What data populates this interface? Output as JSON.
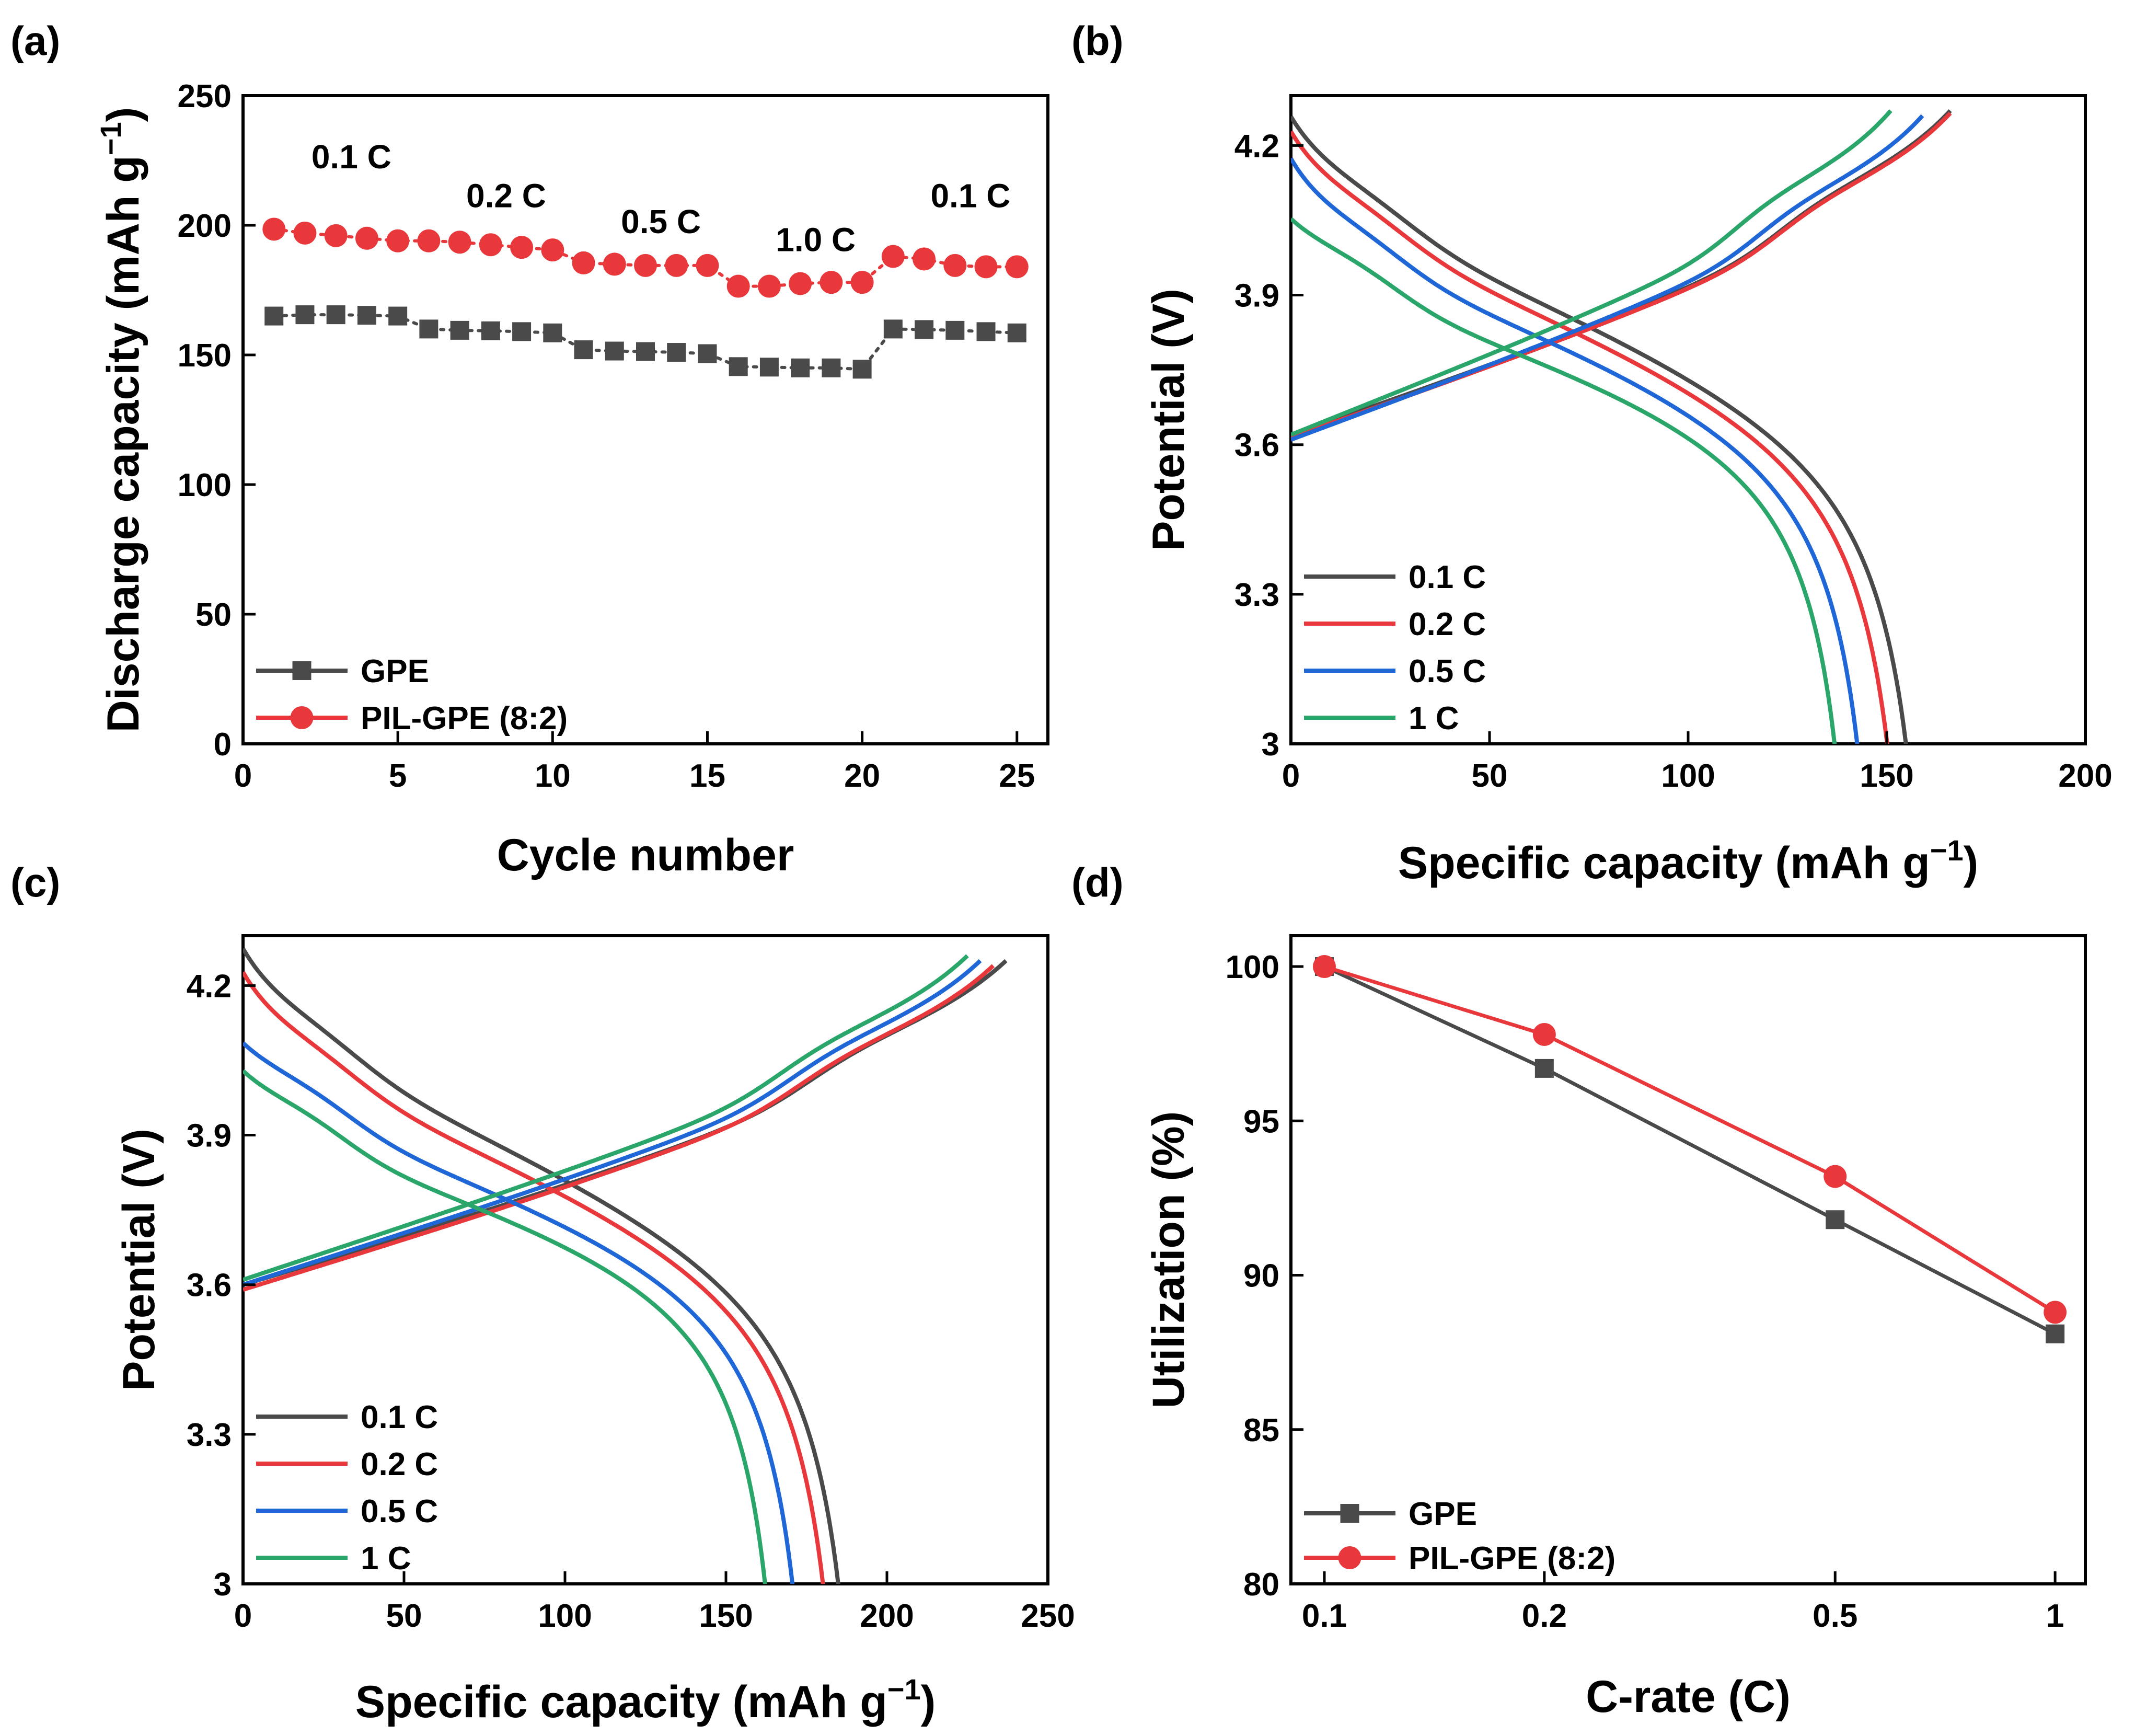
{
  "figure": {
    "background": "#ffffff",
    "panel_labels": [
      "(a)",
      "(b)",
      "(c)",
      "(d)"
    ]
  },
  "chart_data": [
    {
      "panel": "(a)",
      "type": "scatter",
      "xlabel": "Cycle number",
      "ylabel": "Discharge capacity (mAh g",
      "ylabel_sup": "−1",
      "ylabel_tail": ")",
      "xlim": [
        0,
        26
      ],
      "ylim": [
        0,
        250
      ],
      "xticks": [
        0,
        5,
        10,
        15,
        20,
        25
      ],
      "yticks": [
        0,
        50,
        100,
        150,
        200,
        250
      ],
      "legend": "bottom-left",
      "annotations": [
        {
          "text": "0.1 C",
          "x": 3.5,
          "y": 222
        },
        {
          "text": "0.2 C",
          "x": 8.5,
          "y": 207
        },
        {
          "text": "0.5 C",
          "x": 13.5,
          "y": 197
        },
        {
          "text": "1.0 C",
          "x": 18.5,
          "y": 190
        },
        {
          "text": "0.1 C",
          "x": 23.5,
          "y": 207
        }
      ],
      "series": [
        {
          "name": "GPE",
          "color": "#4a4a4a",
          "marker": "square",
          "linestyle": "dotted",
          "x": [
            1,
            2,
            3,
            4,
            5,
            6,
            7,
            8,
            9,
            10,
            11,
            12,
            13,
            14,
            15,
            16,
            17,
            18,
            19,
            20,
            21,
            22,
            23,
            24,
            25
          ],
          "y": [
            165,
            165.5,
            165.5,
            165.3,
            165,
            160,
            159.5,
            159.3,
            159,
            158.5,
            152,
            151.5,
            151.3,
            151,
            150.5,
            145.5,
            145.3,
            145,
            145,
            144.5,
            160,
            159.8,
            159.5,
            159,
            158.5
          ]
        },
        {
          "name": "PIL-GPE (8:2)",
          "color": "#e8383b",
          "marker": "circle",
          "linestyle": "dotted",
          "x": [
            1,
            2,
            3,
            4,
            5,
            6,
            7,
            8,
            9,
            10,
            11,
            12,
            13,
            14,
            15,
            16,
            17,
            18,
            19,
            20,
            21,
            22,
            23,
            24,
            25
          ],
          "y": [
            198.5,
            197,
            196,
            195,
            194,
            194,
            193.5,
            192.5,
            191.5,
            190.5,
            185.5,
            185,
            184.5,
            184.5,
            184.5,
            176.5,
            176.5,
            177.5,
            178,
            178,
            188,
            187,
            184.5,
            184,
            184
          ]
        }
      ]
    },
    {
      "panel": "(b)",
      "type": "line",
      "xlabel": "Specific capacity (mAh g",
      "xlabel_sup": "−1",
      "xlabel_tail": ")",
      "ylabel": "Potential (V)",
      "xlim": [
        0,
        200
      ],
      "ylim": [
        3.0,
        4.3
      ],
      "xticks": [
        0,
        50,
        100,
        150,
        200
      ],
      "yticks": [
        3.0,
        3.3,
        3.6,
        3.9,
        4.2
      ],
      "legend": "bottom-left",
      "series": [
        {
          "name": "0.1 C",
          "color": "#4a4a4a",
          "discharge_capacity": 165,
          "charge_capacity": 166,
          "charge_v0": 3.62,
          "discharge_v0": 4.25,
          "shift": 0
        },
        {
          "name": "0.2 C",
          "color": "#e8383b",
          "discharge_capacity": 160,
          "charge_capacity": 166,
          "charge_v0": 3.615,
          "discharge_v0": 4.22,
          "shift": 0.01
        },
        {
          "name": "0.5 C",
          "color": "#1f66d6",
          "discharge_capacity": 152,
          "charge_capacity": 159,
          "charge_v0": 3.61,
          "discharge_v0": 4.16,
          "shift": 0.02
        },
        {
          "name": "1 C",
          "color": "#2aa66a",
          "discharge_capacity": 146,
          "charge_capacity": 151,
          "charge_v0": 3.62,
          "discharge_v0": 4.08,
          "shift": 0.035
        }
      ]
    },
    {
      "panel": "(c)",
      "type": "line",
      "xlabel": "Specific capacity (mAh g",
      "xlabel_sup": "−1",
      "xlabel_tail": ")",
      "ylabel": "Potential (V)",
      "xlim": [
        0,
        250
      ],
      "ylim": [
        3.0,
        4.3
      ],
      "xticks": [
        0,
        50,
        100,
        150,
        200,
        250
      ],
      "yticks": [
        3.0,
        3.3,
        3.6,
        3.9,
        4.2
      ],
      "legend": "bottom-left",
      "series": [
        {
          "name": "0.1 C",
          "color": "#4a4a4a",
          "discharge_capacity": 197,
          "charge_capacity": 237,
          "charge_v0": 3.6,
          "discharge_v0": 4.27,
          "shift": 0
        },
        {
          "name": "0.2 C",
          "color": "#e8383b",
          "discharge_capacity": 192,
          "charge_capacity": 233,
          "charge_v0": 3.59,
          "discharge_v0": 4.22,
          "shift": 0.012
        },
        {
          "name": "0.5 C",
          "color": "#1f66d6",
          "discharge_capacity": 182,
          "charge_capacity": 229,
          "charge_v0": 3.6,
          "discharge_v0": 4.11,
          "shift": 0.022
        },
        {
          "name": "1 C",
          "color": "#2aa66a",
          "discharge_capacity": 173,
          "charge_capacity": 225,
          "charge_v0": 3.61,
          "discharge_v0": 4.05,
          "shift": 0.035
        }
      ]
    },
    {
      "panel": "(d)",
      "type": "line",
      "xlabel": "C-rate (C)",
      "ylabel": "Utilization (%)",
      "xscale": "log",
      "xlim": [
        0.09,
        1.1
      ],
      "ylim": [
        80,
        101
      ],
      "xticks": [
        0.1,
        0.2,
        0.5,
        1
      ],
      "xticklabels": [
        "0.1",
        "0.2",
        "0.5",
        "1"
      ],
      "yticks": [
        80,
        85,
        90,
        95,
        100
      ],
      "legend": "bottom-left",
      "series": [
        {
          "name": "GPE",
          "color": "#4a4a4a",
          "marker": "square",
          "x": [
            0.1,
            0.2,
            0.5,
            1
          ],
          "y": [
            100,
            96.7,
            91.8,
            88.1
          ]
        },
        {
          "name": "PIL-GPE (8:2)",
          "color": "#e8383b",
          "marker": "circle",
          "x": [
            0.1,
            0.2,
            0.5,
            1
          ],
          "y": [
            100,
            97.8,
            93.2,
            88.8
          ]
        }
      ]
    }
  ]
}
